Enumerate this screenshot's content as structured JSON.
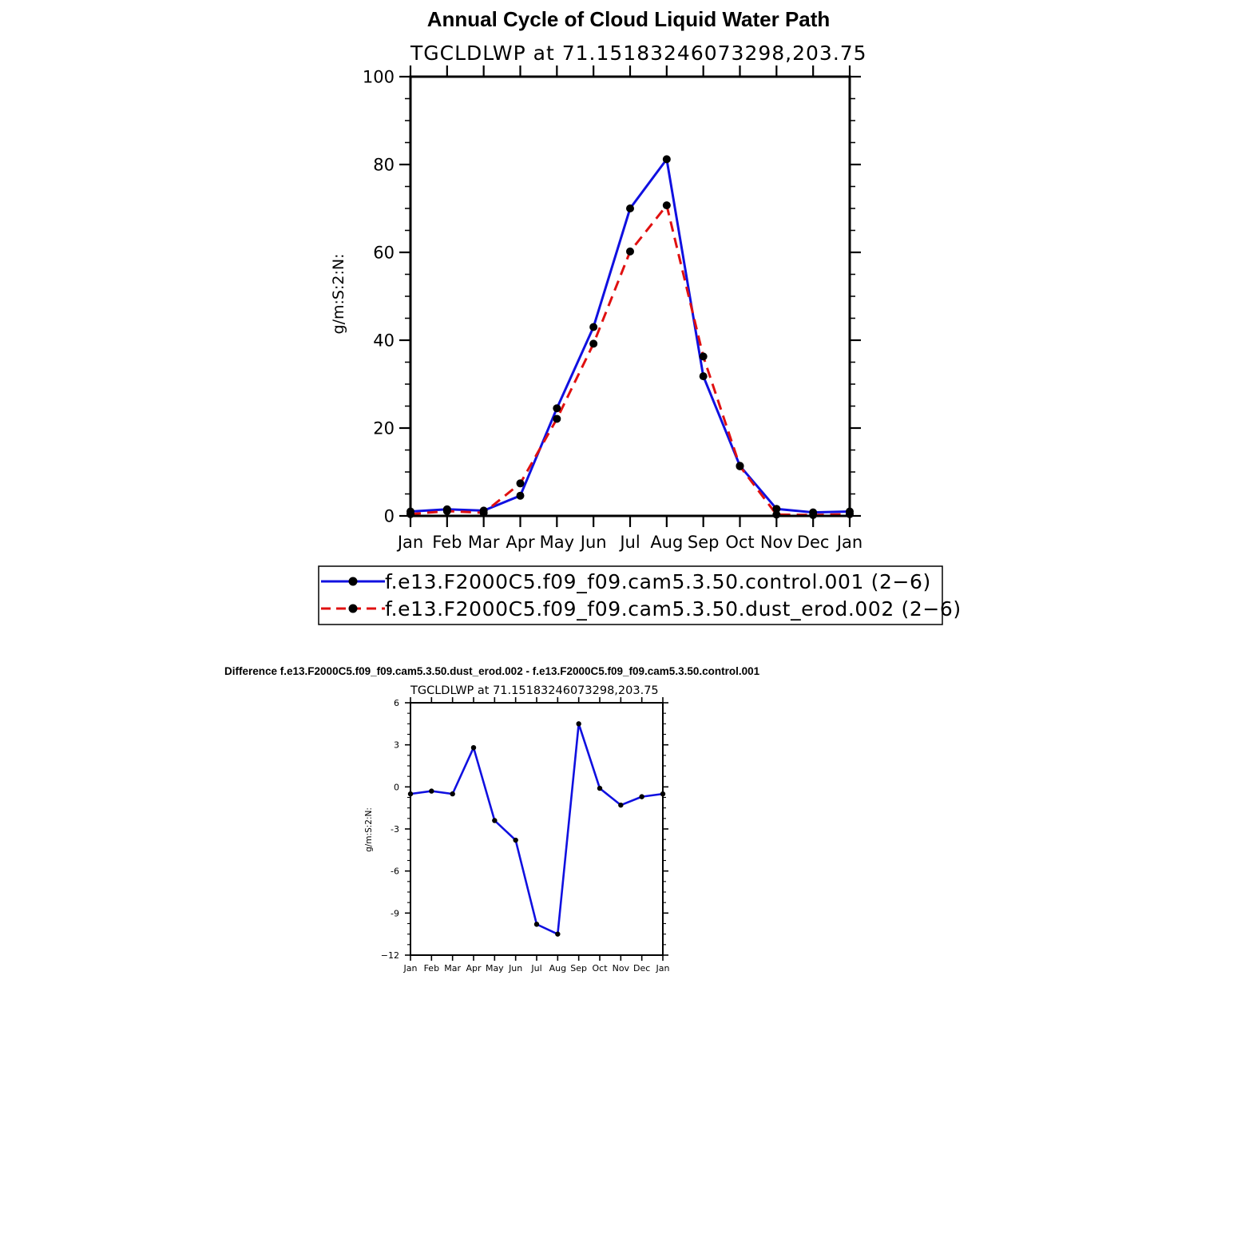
{
  "chart_data": [
    {
      "type": "line",
      "title": "Annual Cycle of Cloud Liquid Water Path",
      "subtitle": "TGCLDLWP  at  71.15183246073298,203.75",
      "xlabel": "",
      "ylabel": "g/m:S:2:N:",
      "categories": [
        "Jan",
        "Feb",
        "Mar",
        "Apr",
        "May",
        "Jun",
        "Jul",
        "Aug",
        "Sep",
        "Oct",
        "Nov",
        "Dec",
        "Jan"
      ],
      "ylim": [
        0,
        100
      ],
      "yticks": [
        0,
        20,
        40,
        60,
        80,
        100
      ],
      "grid": false,
      "legend_position": "bottom",
      "series": [
        {
          "name": "f.e13.F2000C5.f09_f09.cam5.3.50.control.001 (2−6)",
          "color": "#1010e0",
          "dash": "solid",
          "values": [
            1.0,
            1.5,
            1.2,
            4.6,
            24.5,
            43.0,
            70.0,
            81.2,
            31.8,
            11.4,
            1.6,
            0.8,
            1.0
          ]
        },
        {
          "name": "f.e13.F2000C5.f09_f09.cam5.3.50.dust_erod.002 (2−6)",
          "color": "#e01010",
          "dash": "dashed",
          "values": [
            0.4,
            1.1,
            0.7,
            7.4,
            22.1,
            39.2,
            60.2,
            70.7,
            36.3,
            11.3,
            0.3,
            0.2,
            0.4
          ]
        }
      ]
    },
    {
      "type": "line",
      "title": "Difference f.e13.F2000C5.f09_f09.cam5.3.50.dust_erod.002 - f.e13.F2000C5.f09_f09.cam5.3.50.control.001",
      "subtitle": "TGCLDLWP  at  71.15183246073298,203.75",
      "xlabel": "",
      "ylabel": "g/m:S:2:N:",
      "categories": [
        "Jan",
        "Feb",
        "Mar",
        "Apr",
        "May",
        "Jun",
        "Jul",
        "Aug",
        "Sep",
        "Oct",
        "Nov",
        "Dec",
        "Jan"
      ],
      "ylim": [
        -12,
        6
      ],
      "yticks": [
        -12,
        -9,
        -6,
        -3,
        0,
        3,
        6
      ],
      "ytick_labels": [
        "−12",
        "-9",
        "-6",
        "-3",
        "0",
        "3",
        "6"
      ],
      "grid": false,
      "series": [
        {
          "color": "#1010e0",
          "dash": "solid",
          "values": [
            -0.5,
            -0.3,
            -0.5,
            2.8,
            -2.4,
            -3.8,
            -9.8,
            -10.5,
            4.5,
            -0.1,
            -1.3,
            -0.7,
            -0.5
          ]
        }
      ]
    }
  ]
}
